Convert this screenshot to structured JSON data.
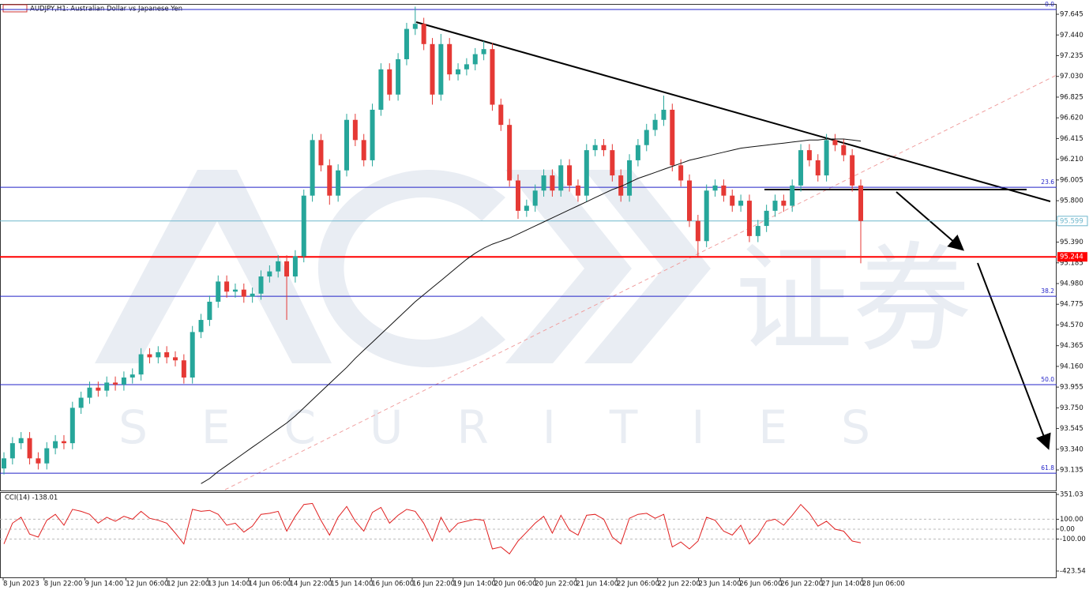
{
  "chart_data": [
    {
      "type": "candlestick",
      "title": "AUDJPY,H1:  Australian Dollar vs Japanese Yen",
      "watermark_text": [
        "证券",
        "SECURITIES"
      ],
      "colors": {
        "up": "#26a69a",
        "down": "#e53935",
        "ma": "#111111",
        "level": "#2323c8"
      },
      "ylim": [
        92.932,
        97.747
      ],
      "yticks": [
        97.645,
        {
          "value": 97.44,
          "label": "97.440"
        },
        97.235,
        {
          "value": 97.03,
          "label": "97.030"
        },
        96.825,
        {
          "value": 96.62,
          "label": "96.620"
        },
        96.415,
        {
          "value": 96.21,
          "label": "96.210"
        },
        96.005,
        {
          "value": 95.8,
          "label": "95.800"
        },
        {
          "value": 95.39,
          "label": "95.390"
        },
        95.185,
        {
          "value": 94.98,
          "label": "94.980"
        },
        94.775,
        {
          "value": 94.57,
          "label": "94.570"
        },
        94.365,
        {
          "value": 94.16,
          "label": "94.160"
        },
        93.955,
        {
          "value": 93.75,
          "label": "93.750"
        },
        93.545,
        {
          "value": 93.34,
          "label": "93.340"
        },
        93.135
      ],
      "x_labels": [
        "8 Jun 2023",
        "8 Jun 22:00",
        "9 Jun 14:00",
        "12 Jun 06:00",
        "12 Jun 22:00",
        "13 Jun 14:00",
        "14 Jun 06:00",
        "14 Jun 22:00",
        "15 Jun 14:00",
        "16 Jun 06:00",
        "16 Jun 22:00",
        "19 Jun 14:00",
        "20 Jun 06:00",
        "20 Jun 22:00",
        "21 Jun 14:00",
        "22 Jun 06:00",
        "22 Jun 22:00",
        "23 Jun 14:00",
        "26 Jun 06:00",
        "26 Jun 22:00",
        "27 Jun 14:00",
        "28 Jun 06:00"
      ],
      "levels": [
        {
          "label": "0.0",
          "value": 97.692
        },
        {
          "label": "23.6",
          "value": 95.933
        },
        {
          "label": "38.2",
          "value": 94.854
        },
        {
          "label": "50.0",
          "value": 93.979
        },
        {
          "label": "61.8",
          "value": 93.103
        }
      ],
      "support": {
        "value": 95.244,
        "color": "#ff0000"
      },
      "current_price": {
        "value": 95.599,
        "color": "#6fb7cc"
      },
      "open": [
        93.15,
        93.25,
        93.4,
        93.45,
        93.25,
        93.2,
        93.35,
        93.42,
        93.4,
        93.75,
        93.85,
        93.95,
        93.92,
        94.0,
        93.98,
        94.05,
        94.08,
        94.28,
        94.25,
        94.3,
        94.25,
        94.22,
        94.05,
        94.5,
        94.62,
        94.8,
        95.0,
        94.9,
        94.92,
        94.85,
        94.88,
        95.05,
        95.1,
        95.2,
        95.05,
        95.25,
        95.85,
        96.4,
        96.15,
        95.85,
        96.1,
        96.6,
        96.4,
        96.2,
        96.7,
        97.1,
        96.85,
        97.2,
        97.5,
        97.55,
        97.35,
        96.85,
        97.35,
        97.05,
        97.1,
        97.15,
        97.25,
        97.3,
        96.75,
        96.55,
        96.0,
        95.7,
        95.75,
        95.9,
        96.05,
        95.9,
        96.15,
        95.95,
        95.85,
        96.3,
        96.35,
        96.3,
        96.05,
        95.85,
        96.2,
        96.35,
        96.5,
        96.6,
        96.7,
        96.15,
        96.0,
        95.6,
        95.4,
        95.9,
        95.95,
        95.85,
        95.75,
        95.8,
        95.45,
        95.55,
        95.7,
        95.8,
        95.75,
        95.95,
        96.3,
        96.2,
        96.05,
        96.4,
        96.35,
        96.25,
        95.95
      ],
      "high": [
        93.31,
        93.46,
        93.51,
        93.51,
        93.31,
        93.41,
        93.48,
        93.48,
        93.81,
        93.91,
        94.01,
        94.01,
        94.06,
        94.06,
        94.11,
        94.14,
        94.34,
        94.34,
        94.36,
        94.36,
        94.31,
        94.28,
        94.56,
        94.68,
        94.86,
        95.06,
        95.06,
        94.98,
        94.98,
        94.94,
        95.11,
        95.16,
        95.26,
        95.26,
        95.31,
        95.91,
        96.46,
        96.46,
        96.21,
        96.16,
        96.66,
        96.66,
        96.46,
        96.76,
        97.16,
        97.16,
        97.26,
        97.56,
        97.72,
        97.61,
        97.41,
        97.45,
        97.41,
        97.16,
        97.21,
        97.31,
        97.38,
        97.36,
        96.81,
        96.61,
        96.06,
        95.81,
        95.96,
        96.11,
        96.11,
        96.21,
        96.21,
        96.01,
        96.36,
        96.41,
        96.41,
        96.36,
        96.11,
        96.26,
        96.41,
        96.56,
        96.66,
        96.84,
        96.76,
        96.21,
        96.06,
        95.66,
        95.96,
        96.01,
        96.01,
        95.91,
        95.86,
        95.86,
        95.61,
        95.76,
        95.86,
        95.86,
        96.01,
        96.36,
        96.36,
        96.26,
        96.46,
        96.46,
        96.41,
        96.31,
        96.01
      ],
      "low": [
        93.09,
        93.19,
        93.34,
        93.19,
        93.14,
        93.14,
        93.29,
        93.34,
        93.34,
        93.69,
        93.79,
        93.86,
        93.86,
        93.92,
        93.92,
        93.99,
        94.02,
        94.19,
        94.19,
        94.19,
        94.16,
        93.99,
        93.99,
        94.44,
        94.56,
        94.74,
        94.84,
        94.84,
        94.79,
        94.79,
        94.82,
        94.99,
        95.04,
        94.62,
        94.99,
        95.19,
        95.79,
        96.09,
        95.76,
        95.79,
        96.04,
        96.34,
        96.14,
        96.14,
        96.64,
        96.79,
        96.79,
        97.14,
        97.44,
        97.29,
        96.75,
        96.79,
        96.99,
        96.99,
        97.04,
        97.09,
        97.19,
        96.69,
        96.49,
        95.94,
        95.62,
        95.64,
        95.69,
        95.84,
        95.84,
        95.84,
        95.89,
        95.79,
        95.79,
        96.24,
        96.24,
        95.99,
        95.79,
        95.79,
        96.14,
        96.29,
        96.44,
        96.54,
        96.09,
        95.94,
        95.54,
        95.25,
        95.34,
        95.84,
        95.79,
        95.69,
        95.69,
        95.39,
        95.39,
        95.49,
        95.64,
        95.69,
        95.69,
        95.89,
        96.14,
        95.99,
        95.99,
        96.29,
        96.19,
        95.89,
        95.18
      ],
      "close": [
        93.25,
        93.4,
        93.45,
        93.25,
        93.2,
        93.35,
        93.42,
        93.4,
        93.75,
        93.85,
        93.95,
        93.92,
        94.0,
        93.98,
        94.05,
        94.08,
        94.28,
        94.25,
        94.3,
        94.25,
        94.22,
        94.05,
        94.5,
        94.62,
        94.8,
        95.0,
        94.9,
        94.92,
        94.85,
        94.88,
        95.05,
        95.1,
        95.2,
        95.05,
        95.25,
        95.85,
        96.4,
        96.15,
        95.85,
        96.1,
        96.6,
        96.4,
        96.2,
        96.7,
        97.1,
        96.85,
        97.2,
        97.5,
        97.55,
        97.35,
        96.85,
        97.35,
        97.05,
        97.1,
        97.15,
        97.25,
        97.3,
        96.75,
        96.55,
        96.0,
        95.7,
        95.75,
        95.9,
        96.05,
        95.9,
        96.15,
        95.95,
        95.85,
        96.3,
        96.35,
        96.3,
        96.05,
        95.85,
        96.2,
        96.35,
        96.5,
        96.6,
        96.7,
        96.15,
        96.0,
        95.6,
        95.4,
        95.9,
        95.95,
        95.85,
        95.75,
        95.8,
        95.45,
        95.55,
        95.7,
        95.8,
        95.75,
        95.95,
        96.3,
        96.2,
        96.05,
        96.4,
        96.35,
        96.25,
        95.95,
        95.599
      ],
      "ma": [
        null,
        null,
        null,
        null,
        null,
        null,
        null,
        null,
        null,
        null,
        null,
        null,
        null,
        null,
        null,
        null,
        null,
        null,
        null,
        null,
        null,
        null,
        null,
        93.0,
        93.05,
        93.12,
        93.18,
        93.24,
        93.3,
        93.36,
        93.42,
        93.48,
        93.54,
        93.6,
        93.67,
        93.75,
        93.83,
        93.91,
        93.99,
        94.07,
        94.15,
        94.24,
        94.32,
        94.4,
        94.48,
        94.56,
        94.64,
        94.72,
        94.8,
        94.87,
        94.94,
        95.01,
        95.08,
        95.15,
        95.22,
        95.28,
        95.33,
        95.37,
        95.4,
        95.43,
        95.47,
        95.51,
        95.55,
        95.59,
        95.63,
        95.67,
        95.71,
        95.75,
        95.79,
        95.83,
        95.87,
        95.91,
        95.94,
        95.98,
        96.02,
        96.05,
        96.08,
        96.11,
        96.14,
        96.17,
        96.2,
        96.22,
        96.24,
        96.26,
        96.28,
        96.3,
        96.32,
        96.33,
        96.34,
        96.35,
        96.36,
        96.37,
        96.38,
        96.39,
        96.4,
        96.4,
        96.41,
        96.41,
        96.41,
        96.4,
        96.39
      ]
    },
    {
      "type": "line",
      "title": "CCI(14) -138.01",
      "color": "#e02020",
      "ylim": [
        -423.54,
        351.03
      ],
      "yticks": [
        351.03,
        {
          "value": 100,
          "label": "100.00"
        },
        {
          "value": 0,
          "label": "0.00"
        },
        {
          "value": -100,
          "label": "-100.00"
        },
        -423.54
      ],
      "values": [
        -150,
        60,
        120,
        -50,
        -80,
        90,
        150,
        40,
        200,
        180,
        150,
        60,
        120,
        80,
        130,
        100,
        180,
        110,
        90,
        60,
        -40,
        -150,
        200,
        180,
        190,
        150,
        40,
        60,
        -30,
        30,
        150,
        160,
        180,
        -20,
        130,
        250,
        260,
        90,
        -60,
        120,
        230,
        80,
        -20,
        170,
        220,
        60,
        140,
        200,
        180,
        60,
        -120,
        120,
        -30,
        60,
        80,
        100,
        90,
        -200,
        -180,
        -250,
        -120,
        -30,
        60,
        130,
        -40,
        140,
        -10,
        -60,
        140,
        150,
        100,
        -80,
        -150,
        110,
        150,
        160,
        110,
        150,
        -180,
        -130,
        -200,
        -120,
        120,
        90,
        -20,
        -60,
        40,
        -150,
        -60,
        80,
        100,
        40,
        140,
        250,
        160,
        30,
        80,
        0,
        -20,
        -120,
        -138.01
      ]
    }
  ]
}
